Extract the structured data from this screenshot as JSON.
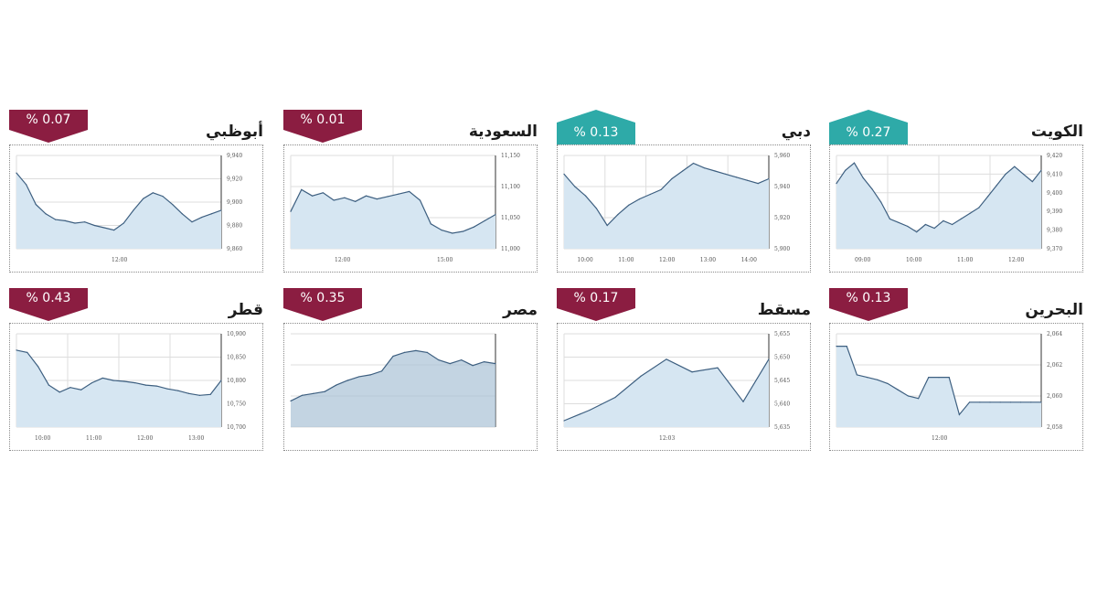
{
  "colors": {
    "down": "#8b1d41",
    "up": "#2eaaa8",
    "line": "#3d5f80",
    "fill": "#d6e6f2",
    "grid": "#dddddd"
  },
  "panels": [
    {
      "id": "kuwait",
      "title": "الكويت",
      "badge": "% 0.27",
      "direction": "up",
      "chart_data": {
        "type": "area",
        "x_ticks": [
          "09:00",
          "10:00",
          "11:00",
          "12:00"
        ],
        "y_ticks": [
          "9,370",
          "9,380",
          "9,390",
          "9,400",
          "9,410",
          "9,420"
        ],
        "ylim": [
          9370,
          9420
        ],
        "values": [
          9405,
          9412,
          9416,
          9408,
          9402,
          9395,
          9386,
          9384,
          9382,
          9379,
          9383,
          9381,
          9385,
          9383,
          9386,
          9389,
          9392,
          9398,
          9404,
          9410,
          9414,
          9410,
          9406,
          9412
        ]
      }
    },
    {
      "id": "dubai",
      "title": "دبي",
      "badge": "% 0.13",
      "direction": "up",
      "chart_data": {
        "type": "area",
        "x_ticks": [
          "10:00",
          "11:00",
          "12:00",
          "13:00",
          "14:00"
        ],
        "y_ticks": [
          "5,900",
          "5,920",
          "5,940",
          "5,960"
        ],
        "ylim": [
          5900,
          5960
        ],
        "values": [
          5948,
          5940,
          5934,
          5926,
          5915,
          5922,
          5928,
          5932,
          5935,
          5938,
          5945,
          5950,
          5955,
          5952,
          5950,
          5948,
          5946,
          5944,
          5942,
          5945
        ]
      }
    },
    {
      "id": "saudi",
      "title": "السعودية",
      "badge": "% 0.01",
      "direction": "down",
      "chart_data": {
        "type": "area",
        "x_ticks": [
          "12:00",
          "15:00"
        ],
        "y_ticks": [
          "11,000",
          "11,050",
          "11,100",
          "11,150"
        ],
        "ylim": [
          11000,
          11150
        ],
        "values": [
          11060,
          11095,
          11085,
          11090,
          11078,
          11082,
          11076,
          11085,
          11080,
          11084,
          11088,
          11092,
          11078,
          11040,
          11030,
          11025,
          11028,
          11035,
          11045,
          11055
        ]
      }
    },
    {
      "id": "abudhabi",
      "title": "أبوظبي",
      "badge": "% 0.07",
      "direction": "down",
      "chart_data": {
        "type": "area",
        "x_ticks": [
          "12:00"
        ],
        "y_ticks": [
          "9,860",
          "9,880",
          "9,900",
          "9,920",
          "9,940"
        ],
        "ylim": [
          9860,
          9940
        ],
        "values": [
          9925,
          9915,
          9898,
          9890,
          9885,
          9884,
          9882,
          9883,
          9880,
          9878,
          9876,
          9882,
          9893,
          9903,
          9908,
          9905,
          9898,
          9890,
          9883,
          9887,
          9890,
          9893
        ]
      }
    },
    {
      "id": "bahrain",
      "title": "البحرين",
      "badge": "% 0.13",
      "direction": "down",
      "chart_data": {
        "type": "line",
        "x_ticks": [
          "12:00"
        ],
        "y_ticks": [
          "2,058",
          "2,060",
          "2,062",
          "2,064"
        ],
        "ylim": [
          2057,
          2064.5
        ],
        "values": [
          2063.5,
          2063.5,
          2061.2,
          2061.0,
          2060.8,
          2060.5,
          2060.0,
          2059.5,
          2059.3,
          2061.0,
          2061.0,
          2061.0,
          2058.0,
          2059.0,
          2059.0,
          2059.0,
          2059.0,
          2059.0,
          2059.0,
          2059.0,
          2059.0
        ]
      }
    },
    {
      "id": "muscat",
      "title": "مسقط",
      "badge": "% 0.17",
      "direction": "down",
      "chart_data": {
        "type": "area",
        "x_ticks": [
          "12:03"
        ],
        "y_ticks": [
          "5,635",
          "5,640",
          "5,645",
          "5,650",
          "5,655"
        ],
        "ylim": [
          5634,
          5656
        ],
        "values": [
          5635.5,
          5638,
          5641,
          5646,
          5650,
          5647,
          5648,
          5640,
          5650
        ]
      }
    },
    {
      "id": "egypt",
      "title": "مصر",
      "badge": "% 0.35",
      "direction": "down",
      "chart_data": {
        "type": "area",
        "x_ticks": [
          "",
          "",
          "",
          "",
          "",
          "",
          "",
          ""
        ],
        "y_ticks": [
          "",
          "",
          "",
          ""
        ],
        "ylim": [
          0,
          100
        ],
        "values": [
          28,
          34,
          36,
          38,
          45,
          50,
          54,
          56,
          60,
          76,
          80,
          82,
          80,
          72,
          68,
          72,
          66,
          70,
          68
        ]
      }
    },
    {
      "id": "qatar",
      "title": "قطر",
      "badge": "% 0.43",
      "direction": "down",
      "chart_data": {
        "type": "area",
        "x_ticks": [
          "10:00",
          "11:00",
          "12:00",
          "13:00"
        ],
        "y_ticks": [
          "10,700",
          "10,750",
          "10,800",
          "10,850",
          "10,900"
        ],
        "ylim": [
          10700,
          10900
        ],
        "values": [
          10865,
          10860,
          10830,
          10790,
          10775,
          10785,
          10780,
          10795,
          10805,
          10800,
          10798,
          10795,
          10790,
          10788,
          10782,
          10778,
          10772,
          10768,
          10770,
          10800
        ]
      }
    }
  ]
}
